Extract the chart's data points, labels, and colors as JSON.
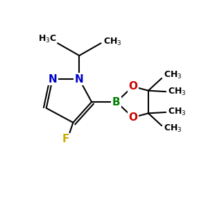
{
  "bg_color": "#ffffff",
  "atom_colors": {
    "N": "#0000cc",
    "B": "#008000",
    "O": "#cc0000",
    "F": "#ccaa00",
    "C": "#000000"
  },
  "font_size_atoms": 11,
  "font_size_labels": 9,
  "figsize": [
    3.0,
    3.0
  ],
  "dpi": 100
}
